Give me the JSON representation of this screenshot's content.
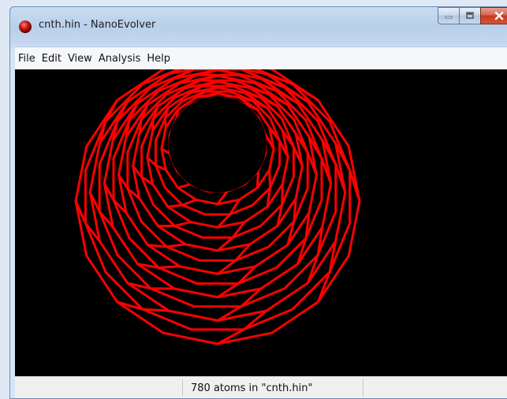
{
  "window": {
    "title": "cnth.hin - NanoEvolver",
    "icon": "red-sphere-app-icon",
    "caption_buttons": [
      "minimize",
      "maximize",
      "close"
    ]
  },
  "menubar": {
    "items": [
      {
        "label": "File"
      },
      {
        "label": "Edit"
      },
      {
        "label": "View"
      },
      {
        "label": "Analysis"
      },
      {
        "label": "Help"
      }
    ]
  },
  "viewport": {
    "background": "#000000",
    "structure_color": "#ff0000",
    "content": "carbon-nanotube-wireframe"
  },
  "statusbar": {
    "text": "780 atoms in \"cnth.hin\""
  }
}
